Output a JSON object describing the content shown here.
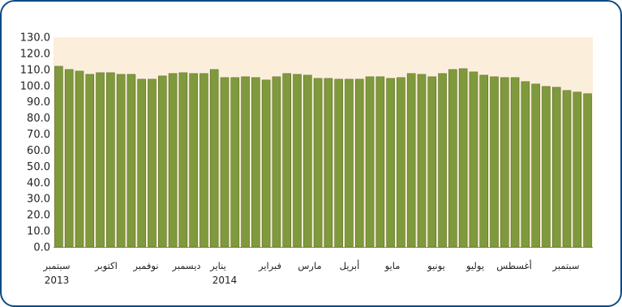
{
  "chart_data": {
    "type": "bar",
    "ylim": [
      0,
      130
    ],
    "yticks": [
      "0.0",
      "10.0",
      "20.0",
      "30.0",
      "40.0",
      "50.0",
      "60.0",
      "70.0",
      "80.0",
      "90.0",
      "100.0",
      "110.0",
      "120.0",
      "130.0"
    ],
    "xtick_labels": [
      "سبتمبر",
      "اكتوبر",
      "نوفمبر",
      "ديسمبر",
      "يناير",
      "فبراير",
      "مارس",
      "أبريل",
      "مايو",
      "يونيو",
      "يوليو",
      "أغسطس",
      "سبتمبر"
    ],
    "year_labels": [
      "2013",
      "2014"
    ],
    "values": [
      112.0,
      110.0,
      109.0,
      107.0,
      108.0,
      108.0,
      107.0,
      107.0,
      104.0,
      104.0,
      106.0,
      107.5,
      108.0,
      107.5,
      107.5,
      110.0,
      105.0,
      105.0,
      105.5,
      105.0,
      103.5,
      105.5,
      107.5,
      107.0,
      106.5,
      104.5,
      104.5,
      104.0,
      104.0,
      104.0,
      105.5,
      105.5,
      104.5,
      105.0,
      107.5,
      107.0,
      105.5,
      107.5,
      110.0,
      110.5,
      108.5,
      106.5,
      105.5,
      105.0,
      105.0,
      102.5,
      101.0,
      99.5,
      99.0,
      97.0,
      96.0,
      95.0
    ],
    "colors": {
      "bar": "#7f9a3c",
      "bar_edge": "#5a6e25",
      "plot_bg": "#fbeedb",
      "frame": "#0b4a86"
    },
    "grid": false,
    "legend": "none"
  }
}
